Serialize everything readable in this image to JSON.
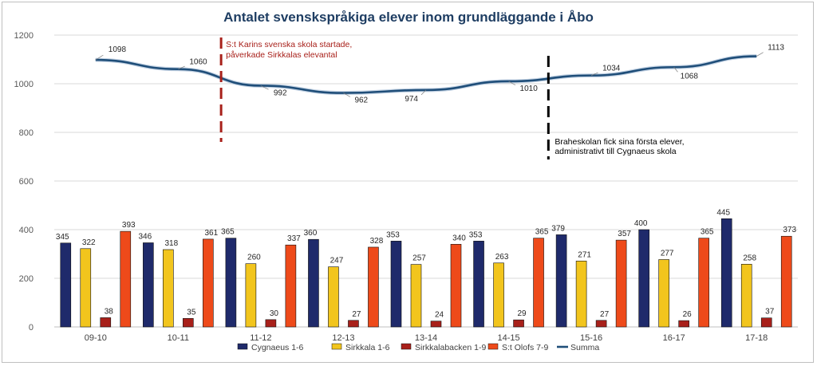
{
  "chart_data": {
    "type": "bar",
    "title": "Antalet svenskspråkiga elever inom grundläggande i Åbo",
    "categories": [
      "09-10",
      "10-11",
      "11-12",
      "12-13",
      "13-14",
      "14-15",
      "15-16",
      "16-17",
      "17-18"
    ],
    "series": [
      {
        "name": "Cygnaeus 1-6",
        "type": "bar",
        "color": "#1f2a6b",
        "values": [
          345,
          346,
          365,
          360,
          353,
          353,
          379,
          400,
          445
        ]
      },
      {
        "name": "Sirkkala 1-6",
        "type": "bar",
        "color": "#f2c51d",
        "values": [
          322,
          318,
          260,
          247,
          257,
          263,
          271,
          277,
          258
        ]
      },
      {
        "name": "Sirkkalabacken 1-9",
        "type": "bar",
        "color": "#a8201a",
        "values": [
          38,
          35,
          30,
          27,
          24,
          29,
          27,
          26,
          37
        ]
      },
      {
        "name": "S:t Olofs 7-9",
        "type": "bar",
        "color": "#ee4a1a",
        "values": [
          393,
          361,
          337,
          328,
          340,
          365,
          357,
          365,
          373
        ]
      },
      {
        "name": "Summa",
        "type": "line",
        "color": "#1f4e79",
        "values": [
          1098,
          1060,
          992,
          962,
          974,
          1010,
          1034,
          1068,
          1113
        ]
      }
    ],
    "yticks": [
      "0",
      "200",
      "400",
      "600",
      "800",
      "1000",
      "1200"
    ],
    "ylim": [
      0,
      1200
    ],
    "grid": true,
    "legend_position": "bottom",
    "annotations": [
      {
        "text_lines": [
          "S:t Karins svenska skola startade,",
          "påverkade Sirkkalas elevantal"
        ],
        "color": "#a8201a",
        "between": [
          "10-11",
          "11-12"
        ]
      },
      {
        "text_lines": [
          "Braheskolan fick sina första elever,",
          "administrativt till Cygnaeus skola"
        ],
        "color": "#000000",
        "between": [
          "14-15",
          "15-16"
        ]
      }
    ]
  }
}
